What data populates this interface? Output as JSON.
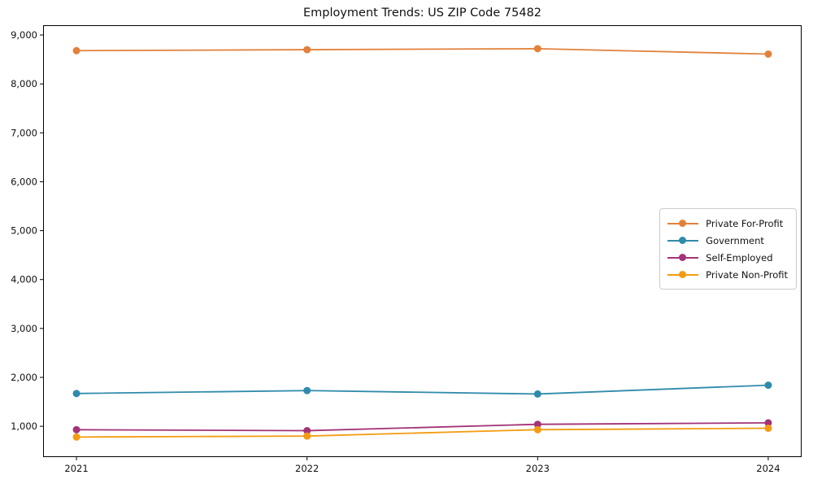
{
  "chart_data": {
    "type": "line",
    "title": "Employment Trends: US ZIP Code 75482",
    "categories": [
      "2021",
      "2022",
      "2023",
      "2024"
    ],
    "series": [
      {
        "name": "Private For-Profit",
        "color": "#e2813b",
        "values": [
          8680,
          8700,
          8720,
          8610
        ]
      },
      {
        "name": "Government",
        "color": "#2f8bab",
        "values": [
          1670,
          1730,
          1660,
          1840
        ]
      },
      {
        "name": "Self-Employed",
        "color": "#a23377",
        "values": [
          930,
          910,
          1040,
          1070
        ]
      },
      {
        "name": "Private Non-Profit",
        "color": "#f39c12",
        "values": [
          780,
          800,
          930,
          960
        ]
      }
    ],
    "xlabel": "",
    "ylabel": "",
    "ylim": [
      370,
      9200
    ],
    "yticks": [
      1000,
      2000,
      3000,
      4000,
      5000,
      6000,
      7000,
      8000,
      9000
    ],
    "ytick_labels": [
      "1,000",
      "2,000",
      "3,000",
      "4,000",
      "5,000",
      "6,000",
      "7,000",
      "8,000",
      "9,000"
    ],
    "grid": false,
    "marker": "circle",
    "legend_position": "center-right",
    "axis_color": "#000000",
    "tick_label_color": "#111111"
  }
}
